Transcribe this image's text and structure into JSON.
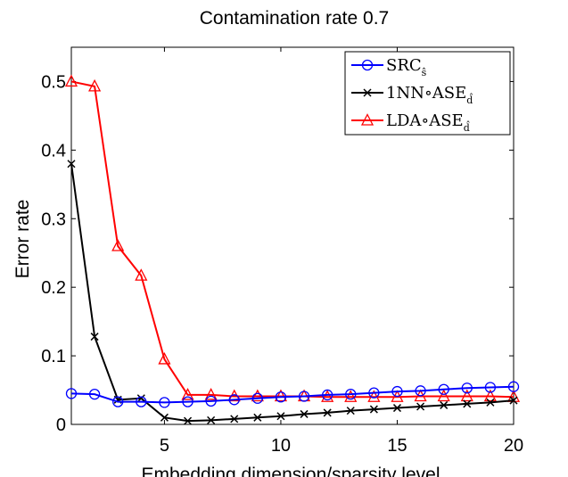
{
  "chart_data": {
    "type": "line",
    "title": "Contamination rate 0.7",
    "xlabel": "Embedding dimension/sparsity level",
    "ylabel": "Error rate",
    "xlim": [
      1,
      20
    ],
    "ylim": [
      0,
      0.55
    ],
    "xticks": [
      5,
      10,
      15,
      20
    ],
    "xtick_labels": [
      "5",
      "10",
      "15",
      "20"
    ],
    "yticks": [
      0,
      0.1,
      0.2,
      0.3,
      0.4,
      0.5
    ],
    "ytick_labels": [
      "0",
      "0.1",
      "0.2",
      "0.3",
      "0.4",
      "0.5"
    ],
    "grid": false,
    "legend_position": "top-right",
    "x": [
      1,
      2,
      3,
      4,
      5,
      6,
      7,
      8,
      9,
      10,
      11,
      12,
      13,
      14,
      15,
      16,
      17,
      18,
      19,
      20
    ],
    "series": [
      {
        "name": "SRC",
        "name_sub": "ŝ",
        "color": "#0000ff",
        "marker": "circle",
        "values": [
          0.045,
          0.044,
          0.033,
          0.033,
          0.032,
          0.033,
          0.034,
          0.036,
          0.038,
          0.04,
          0.041,
          0.043,
          0.044,
          0.046,
          0.048,
          0.049,
          0.051,
          0.053,
          0.054,
          0.055
        ]
      },
      {
        "name": "1NN∘ASE",
        "name_sub": "d̂",
        "color": "#000000",
        "marker": "x",
        "values": [
          0.38,
          0.128,
          0.036,
          0.038,
          0.01,
          0.005,
          0.006,
          0.008,
          0.01,
          0.012,
          0.015,
          0.017,
          0.02,
          0.022,
          0.024,
          0.026,
          0.028,
          0.03,
          0.032,
          0.035
        ]
      },
      {
        "name": "LDA∘ASE",
        "name_sub": "d̂",
        "color": "#ff0000",
        "marker": "triangle",
        "values": [
          0.5,
          0.493,
          0.26,
          0.217,
          0.095,
          0.043,
          0.043,
          0.041,
          0.041,
          0.041,
          0.041,
          0.04,
          0.04,
          0.04,
          0.04,
          0.041,
          0.041,
          0.041,
          0.041,
          0.04
        ]
      }
    ]
  }
}
